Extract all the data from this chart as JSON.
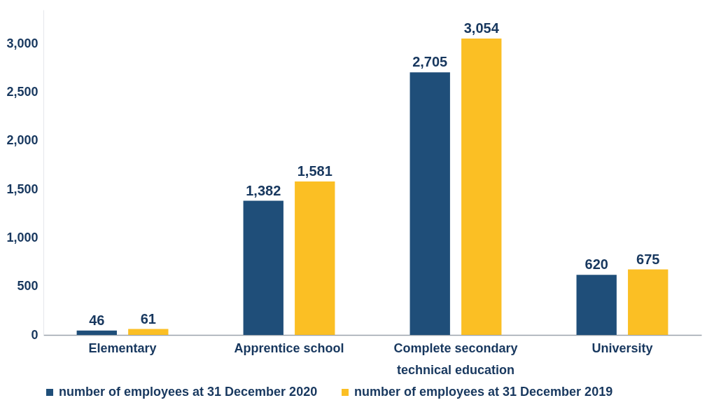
{
  "chart_data": {
    "type": "bar",
    "categories": [
      "Elementary",
      "Apprentice school",
      "Complete secondary technical education",
      "University"
    ],
    "series": [
      {
        "name": "number of employees at 31 December 2020",
        "color": "#1f4e79",
        "values": [
          46,
          1382,
          2705,
          620
        ]
      },
      {
        "name": "number of employees at 31 December 2019",
        "color": "#fbbf24",
        "values": [
          61,
          1581,
          3054,
          675
        ]
      }
    ],
    "value_labels": [
      [
        "46",
        "1,382",
        "2,705",
        "620"
      ],
      [
        "61",
        "1,581",
        "3,054",
        "675"
      ]
    ],
    "ylim": [
      0,
      3350
    ],
    "yticks": [
      0,
      {
        "value": 500,
        "label": "500"
      },
      {
        "value": 1000,
        "label": "1,000"
      },
      {
        "value": 1500,
        "label": "1,500"
      },
      {
        "value": 2000,
        "label": "2,000"
      },
      {
        "value": 2500,
        "label": "2,500"
      },
      {
        "value": 3000,
        "label": "3,000"
      }
    ],
    "grid": false,
    "legend": "bottom"
  }
}
